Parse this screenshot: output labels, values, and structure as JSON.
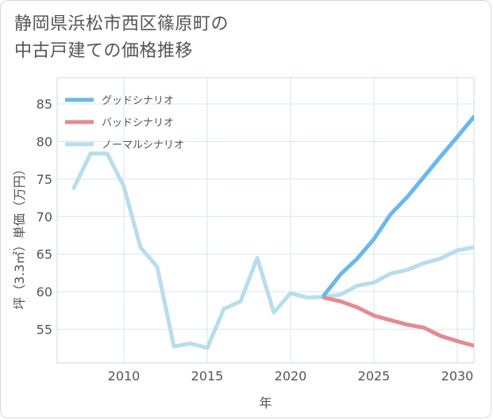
{
  "title": {
    "line1": "静岡県浜松市西区篠原町の",
    "line2": "中古戸建ての価格推移"
  },
  "chart_data": {
    "type": "line",
    "title": "静岡県浜松市西区篠原町の中古戸建ての価格推移",
    "xlabel": "年",
    "ylabel": "坪（3.3㎡）単価（万円）",
    "xlim": [
      2006,
      2031
    ],
    "ylim": [
      50.5,
      88.5
    ],
    "xticks": [
      2010,
      2015,
      2020,
      2025,
      2030
    ],
    "yticks": [
      55,
      60,
      65,
      70,
      75,
      80,
      85
    ],
    "xtick_labels": [
      "2010",
      "2015",
      "2020",
      "2025",
      "2030"
    ],
    "ytick_labels": [
      "55",
      "60",
      "65",
      "70",
      "75",
      "80",
      "85"
    ],
    "grid": true,
    "legend_position": "top-left",
    "series": [
      {
        "name": "グッドシナリオ",
        "color": "#6ab8ec",
        "x": [
          2022,
          2023,
          2024,
          2025,
          2026,
          2027,
          2028,
          2029,
          2030,
          2031
        ],
        "y": [
          59.5,
          62.3,
          64.4,
          67.0,
          70.3,
          72.6,
          75.3,
          78.0,
          80.6,
          83.3
        ]
      },
      {
        "name": "バッドシナリオ",
        "color": "#e38b90",
        "x": [
          2022,
          2023,
          2024,
          2025,
          2026,
          2027,
          2028,
          2029,
          2030,
          2031
        ],
        "y": [
          59.2,
          58.7,
          57.9,
          56.8,
          56.2,
          55.6,
          55.2,
          54.1,
          53.4,
          52.8
        ]
      },
      {
        "name": "ノーマルシナリオ",
        "color": "#b8dded",
        "x": [
          2007,
          2008,
          2009,
          2010,
          2011,
          2012,
          2013,
          2014,
          2015,
          2016,
          2017,
          2018,
          2019,
          2020,
          2021,
          2022,
          2023,
          2024,
          2025,
          2026,
          2027,
          2028,
          2029,
          2030,
          2031
        ],
        "y": [
          73.8,
          78.4,
          78.4,
          74.0,
          65.9,
          63.3,
          52.7,
          53.1,
          52.5,
          57.7,
          58.7,
          64.5,
          57.2,
          59.8,
          59.2,
          59.3,
          59.6,
          60.8,
          61.2,
          62.4,
          62.9,
          63.8,
          64.4,
          65.5,
          65.9
        ]
      }
    ]
  }
}
